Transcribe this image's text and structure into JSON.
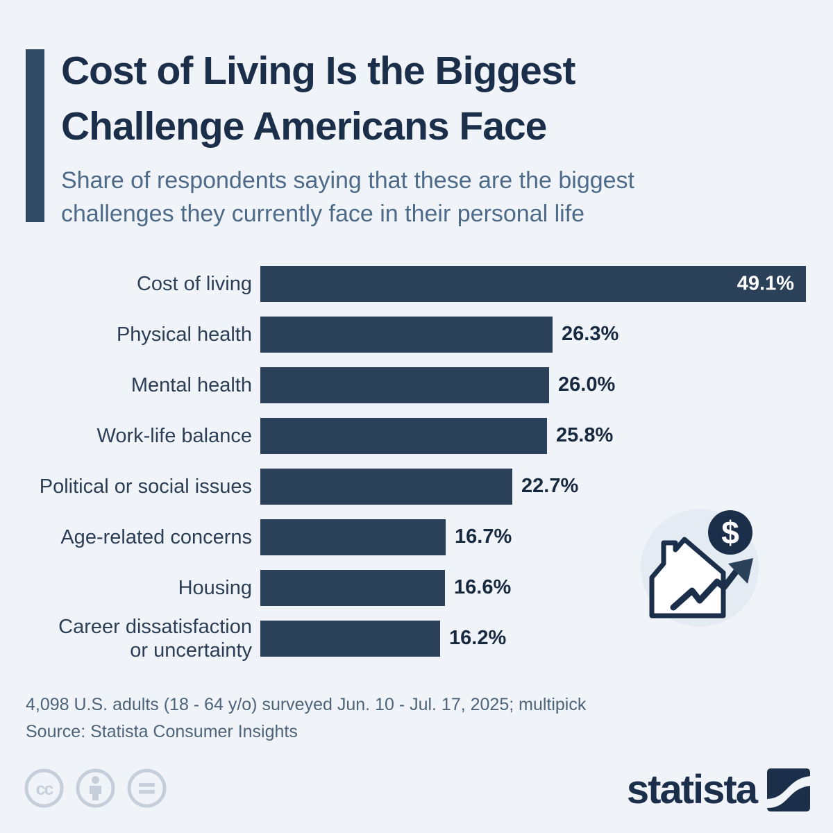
{
  "header": {
    "title_line1": "Cost of Living Is the Biggest",
    "title_line2": "Challenge Americans Face",
    "subtitle_line1": "Share of respondents saying that these are the biggest",
    "subtitle_line2": "challenges they currently face in their personal life"
  },
  "chart_data": {
    "type": "bar",
    "orientation": "horizontal",
    "unit": "%",
    "title": "Cost of Living Is the Biggest Challenge Americans Face",
    "categories": [
      "Cost of living",
      "Physical health",
      "Mental health",
      "Work-life balance",
      "Political or social issues",
      "Age-related concerns",
      "Housing",
      "Career dissatisfaction\nor uncertainty"
    ],
    "values": [
      49.1,
      26.3,
      26.0,
      25.8,
      22.7,
      16.7,
      16.6,
      16.2
    ],
    "value_labels": [
      "49.1%",
      "26.3%",
      "26.0%",
      "25.8%",
      "22.7%",
      "16.7%",
      "16.6%",
      "16.2%"
    ],
    "xlim": [
      0,
      49.1
    ],
    "value_label_inside_bar": [
      true,
      false,
      false,
      false,
      false,
      false,
      false,
      false
    ],
    "grid": false,
    "legend": false
  },
  "icon": {
    "name": "house-price-trend-icon",
    "dollar_sign": "$"
  },
  "footer": {
    "note": "4,098 U.S. adults (18 - 64 y/o) surveyed Jun. 10 - Jul. 17, 2025; multipick",
    "source": "Source: Statista Consumer Insights"
  },
  "branding": {
    "wordmark": "statista",
    "cc_text": "cc",
    "license_icons": [
      "cc-icon",
      "attribution-icon",
      "no-derivatives-icon"
    ]
  },
  "colors": {
    "background": "#f0f4f9",
    "bar": "#2b4159",
    "title": "#1b2e4a",
    "subtitle": "#4d6a88",
    "accent_bar": "#2f4a64",
    "category_label": "#2b3e55",
    "value_label": "#17293f",
    "value_label_inside": "#ffffff",
    "footnote": "#4c6379",
    "license_gray": "#c6cfd9",
    "icon_circle": "#e4ebf2",
    "icon_navy": "#1c2f4a"
  }
}
